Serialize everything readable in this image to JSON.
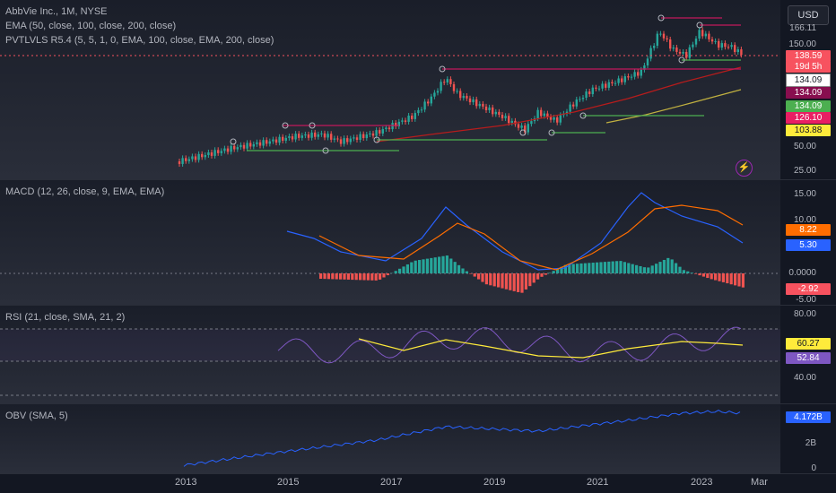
{
  "header": {
    "symbol": "AbbVie Inc., 1M, NYSE",
    "ema": "EMA (50, close, 100, close, 200, close)",
    "pvt": "PVTLVLS R5.4 (5, 5, 1, 0, EMA, 100, close, EMA, 200, close)"
  },
  "currency": "USD",
  "price_axis": {
    "ticks": [
      "166.11",
      "150.00",
      "50.00",
      "25.00"
    ],
    "tags": [
      {
        "text": "138.59",
        "color": "#f7525f"
      },
      {
        "text": "19d 5h",
        "color": "#f7525f"
      },
      {
        "text": "134.09",
        "color": "#ffffff",
        "fg": "#131722"
      },
      {
        "text": "134.09",
        "color": "#880e4f"
      },
      {
        "text": "134.09",
        "color": "#4caf50"
      },
      {
        "text": "126.10",
        "color": "#e91e63"
      },
      {
        "text": "103.88",
        "color": "#ffeb3b",
        "fg": "#131722"
      }
    ]
  },
  "macd": {
    "legend": "MACD (12, 26, close, 9, EMA, EMA)",
    "ticks": [
      "15.00",
      "10.00",
      "0.0000",
      "-5.00"
    ],
    "tags": [
      {
        "text": "8.22",
        "color": "#ff6d00"
      },
      {
        "text": "5.30",
        "color": "#2962ff"
      },
      {
        "text": "-2.92",
        "color": "#f7525f"
      }
    ]
  },
  "rsi": {
    "legend": "RSI (21, close, SMA, 21, 2)",
    "ticks": [
      "80.00",
      "40.00"
    ],
    "tags": [
      {
        "text": "60.27",
        "color": "#ffeb3b",
        "fg": "#131722"
      },
      {
        "text": "52.84",
        "color": "#7e57c2"
      }
    ]
  },
  "obv": {
    "legend": "OBV (SMA, 5)",
    "ticks": [
      "2B",
      "0"
    ],
    "tags": [
      {
        "text": "4.172B",
        "color": "#2962ff"
      }
    ]
  },
  "time_axis": [
    "2013",
    "2015",
    "2017",
    "2019",
    "2021",
    "2023",
    "Mar"
  ],
  "icons": {
    "bolt": "lightning-icon"
  }
}
